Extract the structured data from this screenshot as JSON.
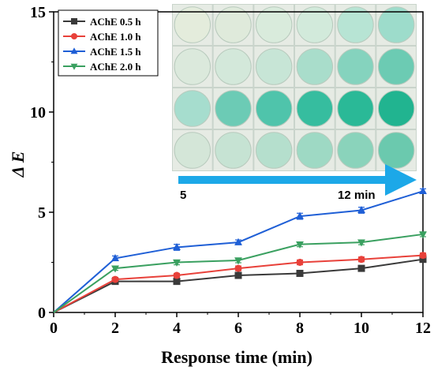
{
  "chart_data": {
    "type": "line",
    "xlabel": "Response time (min)",
    "ylabel": "Δ E",
    "x": [
      0,
      2,
      4,
      6,
      8,
      10,
      12
    ],
    "x_ticks": [
      "0",
      "2",
      "4",
      "6",
      "8",
      "10",
      "12"
    ],
    "y_ticks": [
      "0",
      "5",
      "10",
      "15"
    ],
    "xlim": [
      0,
      12
    ],
    "ylim": [
      0,
      15
    ],
    "grid": false,
    "legend_position": "top-left",
    "series": [
      {
        "name": "AChE 0.5 h",
        "color": "#3a3a3a",
        "marker": "square",
        "values": [
          0,
          1.55,
          1.55,
          1.85,
          1.95,
          2.2,
          2.65
        ],
        "errors": [
          0,
          0.1,
          0.1,
          0.1,
          0.1,
          0.1,
          0.12
        ]
      },
      {
        "name": "AChE 1.0 h",
        "color": "#e8413a",
        "marker": "circle",
        "values": [
          0,
          1.65,
          1.85,
          2.2,
          2.5,
          2.65,
          2.85
        ],
        "errors": [
          0,
          0.1,
          0.1,
          0.12,
          0.12,
          0.12,
          0.12
        ]
      },
      {
        "name": "AChE 1.5 h",
        "color": "#1f5fd6",
        "marker": "triangle-up",
        "values": [
          0,
          2.7,
          3.25,
          3.5,
          4.8,
          5.1,
          6.05
        ],
        "errors": [
          0,
          0.12,
          0.15,
          0.12,
          0.15,
          0.15,
          0.12
        ]
      },
      {
        "name": "AChE 2.0 h",
        "color": "#3aa060",
        "marker": "triangle-down",
        "values": [
          0,
          2.2,
          2.5,
          2.6,
          3.4,
          3.5,
          3.9
        ],
        "errors": [
          0,
          0.1,
          0.12,
          0.12,
          0.12,
          0.12,
          0.12
        ]
      }
    ],
    "inset": {
      "arrow_start_label": "5",
      "arrow_end_label": "12 min",
      "arrow_color": "#1ca8e8",
      "rows": [
        [
          "#e4ecdc",
          "#dfeadb",
          "#d9ebdc",
          "#d2eadb",
          "#b7e4d4",
          "#9ddccb"
        ],
        [
          "#dbe9dc",
          "#d3e8da",
          "#c7e5d6",
          "#a9ddcb",
          "#85d3be",
          "#6ccbb3"
        ],
        [
          "#a6ddce",
          "#6ccbb5",
          "#4fc4ab",
          "#36bd9f",
          "#2ab997",
          "#21b490"
        ],
        [
          "#d4e6d8",
          "#c6e3d3",
          "#b5dfcd",
          "#9ed9c4",
          "#8ad3bb",
          "#6bc9ae"
        ]
      ]
    }
  }
}
